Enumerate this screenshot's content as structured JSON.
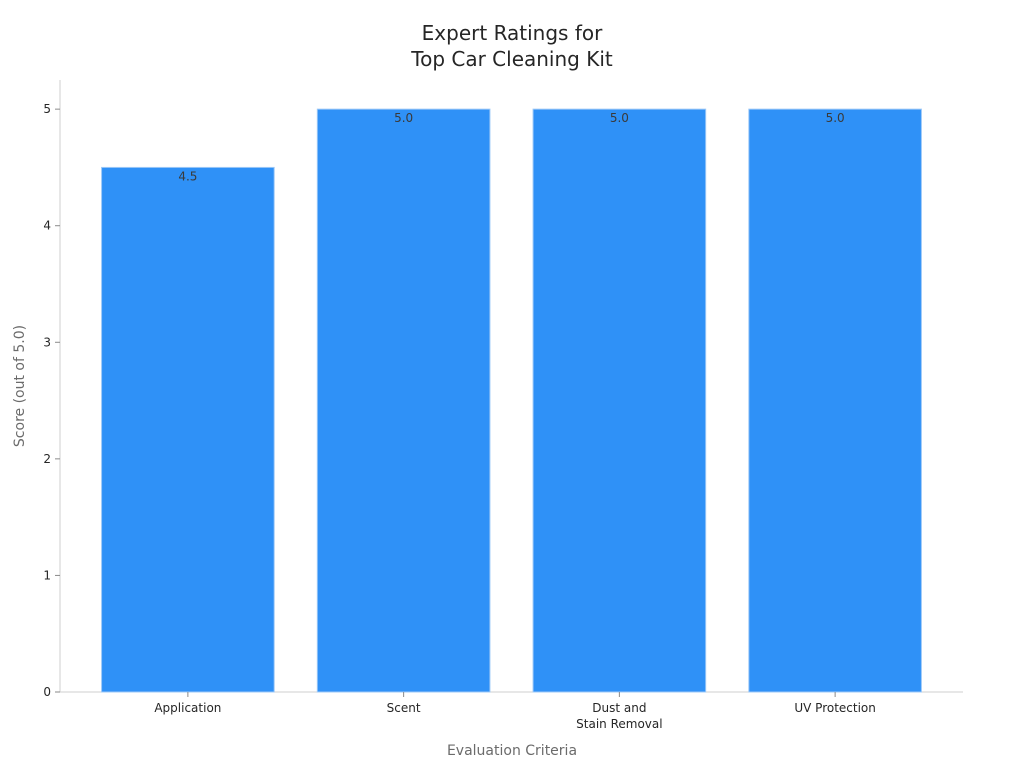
{
  "chart_data": {
    "type": "bar",
    "title_lines": [
      "Expert Ratings for",
      "Top Car Cleaning Kit"
    ],
    "xlabel": "Evaluation Criteria",
    "ylabel": "Score (out of 5.0)",
    "categories": [
      [
        "Application"
      ],
      [
        "Scent"
      ],
      [
        "Dust and",
        "Stain Removal"
      ],
      [
        "UV Protection"
      ]
    ],
    "values": [
      4.5,
      5.0,
      5.0,
      5.0
    ],
    "data_labels": [
      "4.5",
      "5.0",
      "5.0",
      "5.0"
    ],
    "ylim": [
      0,
      5.25
    ],
    "yticks": [
      0,
      1,
      2,
      3,
      4,
      5
    ],
    "grid": false,
    "colors": {
      "bar": "#2f91f7",
      "bar_edge": "#9cc8f7"
    }
  }
}
